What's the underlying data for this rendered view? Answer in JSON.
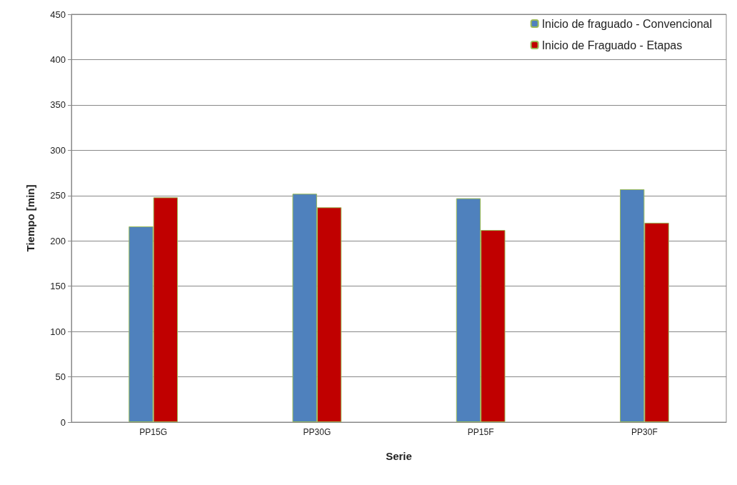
{
  "chart_data": {
    "type": "bar",
    "xlabel": "Serie",
    "ylabel": "Tiempo [min]",
    "categories": [
      "PP15G",
      "PP30G",
      "PP15F",
      "PP30F"
    ],
    "series": [
      {
        "name": "Inicio de fraguado - Convencional",
        "color": "#4f81bd",
        "values": [
          216,
          252,
          247,
          257
        ]
      },
      {
        "name": "Inicio de Fraguado - Etapas",
        "color": "#c00000",
        "values": [
          248,
          237,
          212,
          220
        ]
      }
    ],
    "ylim": [
      0,
      450
    ],
    "yticks": [
      0,
      50,
      100,
      150,
      200,
      250,
      300,
      350,
      400,
      450
    ],
    "grid": "y",
    "legend": "top right"
  }
}
